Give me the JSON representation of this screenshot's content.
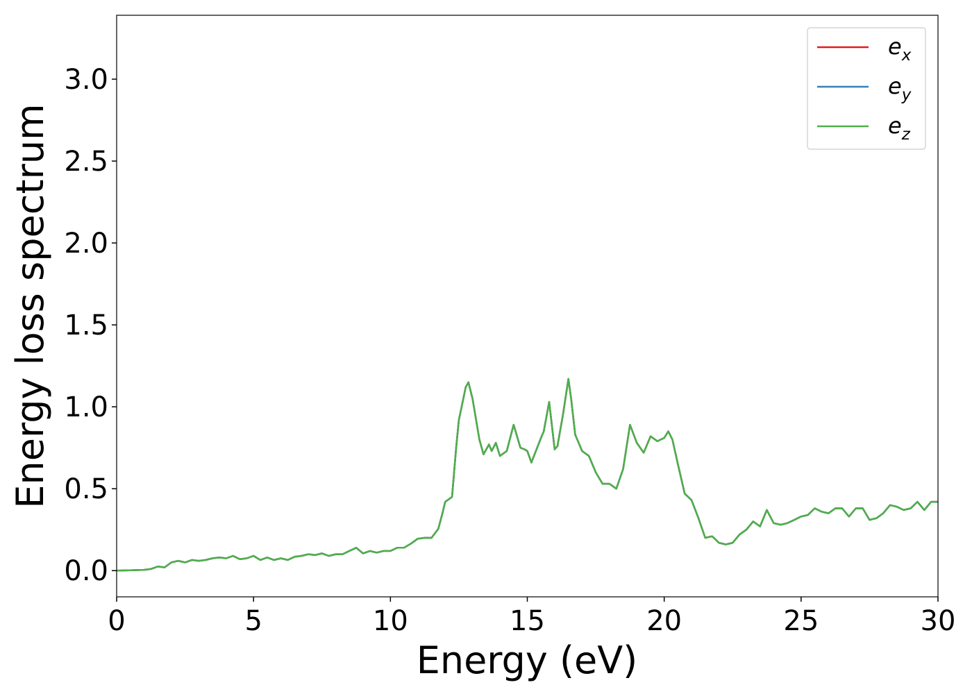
{
  "chart_data": {
    "type": "line",
    "xlabel": "Energy (eV)",
    "ylabel": "Energy loss spectrum",
    "x": [
      0,
      0.5,
      1,
      1.25,
      1.5,
      1.75,
      2,
      2.25,
      2.5,
      2.75,
      3,
      3.25,
      3.5,
      3.75,
      4,
      4.25,
      4.5,
      4.75,
      5,
      5.25,
      5.5,
      5.75,
      6,
      6.25,
      6.5,
      6.75,
      7,
      7.25,
      7.5,
      7.75,
      8,
      8.25,
      8.5,
      8.75,
      9,
      9.25,
      9.5,
      9.75,
      10,
      10.25,
      10.5,
      10.75,
      11,
      11.25,
      11.5,
      11.75,
      11.9,
      12,
      12.25,
      12.4,
      12.5,
      12.6,
      12.75,
      12.85,
      13,
      13.25,
      13.4,
      13.6,
      13.7,
      13.85,
      14,
      14.25,
      14.5,
      14.75,
      14.9,
      15,
      15.15,
      15.5,
      15.6,
      15.8,
      16,
      16.1,
      16.3,
      16.5,
      16.6,
      16.75,
      17,
      17.25,
      17.5,
      17.75,
      18,
      18.25,
      18.5,
      18.75,
      19,
      19.25,
      19.5,
      19.75,
      20,
      20.15,
      20.3,
      20.5,
      20.75,
      21,
      21.25,
      21.5,
      21.75,
      22,
      22.25,
      22.5,
      22.75,
      23,
      23.25,
      23.5,
      23.75,
      24,
      24.25,
      24.5,
      24.75,
      25,
      25.25,
      25.5,
      25.75,
      26,
      26.25,
      26.5,
      26.75,
      27,
      27.25,
      27.5,
      27.75,
      28,
      28.25,
      28.5,
      28.75,
      29,
      29.25,
      29.5,
      29.75,
      30
    ],
    "series": [
      {
        "name": "ex",
        "color": "#e41a1c",
        "values": [
          0,
          0.002,
          0.005,
          0.01,
          0.025,
          0.02,
          0.05,
          0.06,
          0.05,
          0.065,
          0.06,
          0.065,
          0.075,
          0.08,
          0.075,
          0.09,
          0.07,
          0.075,
          0.09,
          0.065,
          0.08,
          0.065,
          0.075,
          0.065,
          0.085,
          0.09,
          0.1,
          0.095,
          0.105,
          0.09,
          0.1,
          0.1,
          0.12,
          0.14,
          0.105,
          0.12,
          0.11,
          0.12,
          0.12,
          0.14,
          0.14,
          0.165,
          0.195,
          0.2,
          0.2,
          0.255,
          0.35,
          0.42,
          0.45,
          0.75,
          0.92,
          1.0,
          1.12,
          1.15,
          1.05,
          0.8,
          0.71,
          0.77,
          0.73,
          0.78,
          0.7,
          0.73,
          0.89,
          0.75,
          0.74,
          0.73,
          0.66,
          0.81,
          0.85,
          1.03,
          0.74,
          0.76,
          0.95,
          1.17,
          1.05,
          0.83,
          0.73,
          0.7,
          0.6,
          0.53,
          0.53,
          0.5,
          0.62,
          0.89,
          0.78,
          0.72,
          0.82,
          0.79,
          0.81,
          0.85,
          0.8,
          0.65,
          0.47,
          0.43,
          0.32,
          0.2,
          0.21,
          0.17,
          0.16,
          0.17,
          0.22,
          0.25,
          0.3,
          0.27,
          0.37,
          0.29,
          0.28,
          0.29,
          0.31,
          0.33,
          0.34,
          0.38,
          0.36,
          0.35,
          0.38,
          0.38,
          0.33,
          0.38,
          0.38,
          0.31,
          0.32,
          0.35,
          0.4,
          0.39,
          0.37,
          0.38,
          0.42,
          0.37,
          0.42,
          0.42
        ]
      },
      {
        "name": "ey",
        "color": "#377eb8",
        "values": [
          0,
          0.002,
          0.005,
          0.01,
          0.025,
          0.02,
          0.05,
          0.06,
          0.05,
          0.065,
          0.06,
          0.065,
          0.075,
          0.08,
          0.075,
          0.09,
          0.07,
          0.075,
          0.09,
          0.065,
          0.08,
          0.065,
          0.075,
          0.065,
          0.085,
          0.09,
          0.1,
          0.095,
          0.105,
          0.09,
          0.1,
          0.1,
          0.12,
          0.14,
          0.105,
          0.12,
          0.11,
          0.12,
          0.12,
          0.14,
          0.14,
          0.165,
          0.195,
          0.2,
          0.2,
          0.255,
          0.35,
          0.42,
          0.45,
          0.75,
          0.92,
          1.0,
          1.12,
          1.15,
          1.05,
          0.8,
          0.71,
          0.77,
          0.73,
          0.78,
          0.7,
          0.73,
          0.89,
          0.75,
          0.74,
          0.73,
          0.66,
          0.81,
          0.85,
          1.03,
          0.74,
          0.76,
          0.95,
          1.17,
          1.05,
          0.83,
          0.73,
          0.7,
          0.6,
          0.53,
          0.53,
          0.5,
          0.62,
          0.89,
          0.78,
          0.72,
          0.82,
          0.79,
          0.81,
          0.85,
          0.8,
          0.65,
          0.47,
          0.43,
          0.32,
          0.2,
          0.21,
          0.17,
          0.16,
          0.17,
          0.22,
          0.25,
          0.3,
          0.27,
          0.37,
          0.29,
          0.28,
          0.29,
          0.31,
          0.33,
          0.34,
          0.38,
          0.36,
          0.35,
          0.38,
          0.38,
          0.33,
          0.38,
          0.38,
          0.31,
          0.32,
          0.35,
          0.4,
          0.39,
          0.37,
          0.38,
          0.42,
          0.37,
          0.42,
          0.42
        ]
      },
      {
        "name": "ez",
        "color": "#4daf4a",
        "values": [
          0,
          0.002,
          0.005,
          0.01,
          0.025,
          0.02,
          0.05,
          0.06,
          0.05,
          0.065,
          0.06,
          0.065,
          0.075,
          0.08,
          0.075,
          0.09,
          0.07,
          0.075,
          0.09,
          0.065,
          0.08,
          0.065,
          0.075,
          0.065,
          0.085,
          0.09,
          0.1,
          0.095,
          0.105,
          0.09,
          0.1,
          0.1,
          0.12,
          0.14,
          0.105,
          0.12,
          0.11,
          0.12,
          0.12,
          0.14,
          0.14,
          0.165,
          0.195,
          0.2,
          0.2,
          0.255,
          0.35,
          0.42,
          0.45,
          0.75,
          0.92,
          1.0,
          1.12,
          1.15,
          1.05,
          0.8,
          0.71,
          0.77,
          0.73,
          0.78,
          0.7,
          0.73,
          0.89,
          0.75,
          0.74,
          0.73,
          0.66,
          0.81,
          0.85,
          1.03,
          0.74,
          0.76,
          0.95,
          1.17,
          1.05,
          0.83,
          0.73,
          0.7,
          0.6,
          0.53,
          0.53,
          0.5,
          0.62,
          0.89,
          0.78,
          0.72,
          0.82,
          0.79,
          0.81,
          0.85,
          0.8,
          0.65,
          0.47,
          0.43,
          0.32,
          0.2,
          0.21,
          0.17,
          0.16,
          0.17,
          0.22,
          0.25,
          0.3,
          0.27,
          0.37,
          0.29,
          0.28,
          0.29,
          0.31,
          0.33,
          0.34,
          0.38,
          0.36,
          0.35,
          0.38,
          0.38,
          0.33,
          0.38,
          0.38,
          0.31,
          0.32,
          0.35,
          0.4,
          0.39,
          0.37,
          0.38,
          0.42,
          0.37,
          0.42,
          0.42
        ]
      }
    ],
    "xlim": [
      0,
      30
    ],
    "xticks": [
      0,
      5,
      10,
      15,
      20,
      25,
      30
    ],
    "ylim": [
      -0.16,
      3.39
    ],
    "yticks": [
      {
        "value": 0,
        "label": "0.0"
      },
      0.5,
      {
        "value": 1,
        "label": "1.0"
      },
      1.5,
      {
        "value": 2,
        "label": "2.0"
      },
      2.5,
      {
        "value": 3,
        "label": "3.0"
      }
    ],
    "legend": "upper right",
    "grid": false
  }
}
